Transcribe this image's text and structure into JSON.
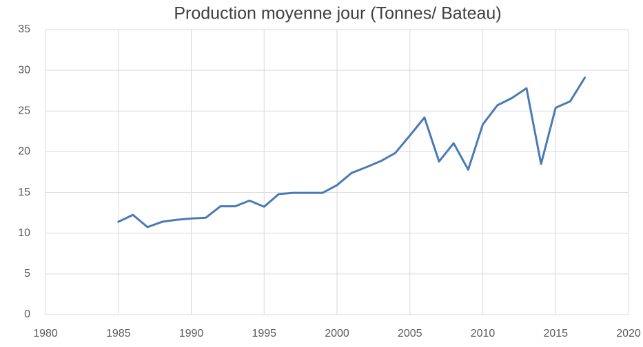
{
  "chart_data": {
    "type": "line",
    "title": "Production moyenne jour (Tonnes/ Bateau)",
    "x": [
      1985,
      1986,
      1987,
      1988,
      1989,
      1990,
      1991,
      1992,
      1993,
      1994,
      1995,
      1996,
      1997,
      1998,
      1999,
      2000,
      2001,
      2002,
      2003,
      2004,
      2005,
      2006,
      2007,
      2008,
      2009,
      2010,
      2011,
      2012,
      2013,
      2014,
      2015,
      2016,
      2017
    ],
    "series": [
      {
        "color": "#4a7ab5",
        "values": [
          11.4,
          12.25,
          10.75,
          11.4,
          11.65,
          11.8,
          11.9,
          13.3,
          13.3,
          14.0,
          13.25,
          14.8,
          14.95,
          14.95,
          14.95,
          15.9,
          17.4,
          18.1,
          18.85,
          19.85,
          22.0,
          24.2,
          18.8,
          21.05,
          17.8,
          23.35,
          25.7,
          26.6,
          27.8,
          18.5,
          25.4,
          26.2,
          29.1
        ]
      }
    ],
    "xlim": [
      1980,
      2020
    ],
    "xticks": [
      1980,
      1985,
      1990,
      1995,
      2000,
      2005,
      2010,
      2015,
      2020
    ],
    "ylim": [
      0,
      35
    ],
    "yticks": [
      0,
      5,
      10,
      15,
      20,
      25,
      30,
      35
    ],
    "grid": true
  }
}
